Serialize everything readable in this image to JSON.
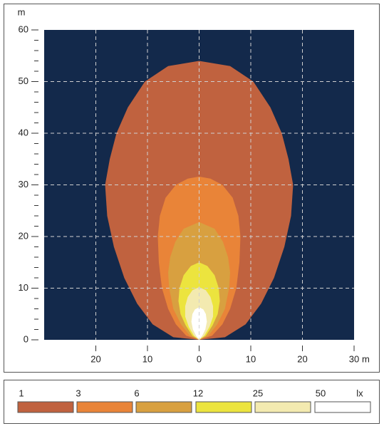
{
  "chart_data": {
    "type": "contour",
    "x_unit": "m",
    "y_unit": "m",
    "legend_unit": "lx",
    "background": "#13294b",
    "grid": true,
    "xlim": [
      -30,
      30
    ],
    "xticks": [
      {
        "value": -20,
        "label": "20"
      },
      {
        "value": -10,
        "label": "10"
      },
      0,
      10,
      20,
      30
    ],
    "ylim": [
      0,
      60
    ],
    "yticks": [
      0,
      10,
      20,
      30,
      40,
      50,
      60
    ],
    "y_minor_ticks": [
      2,
      4,
      6,
      8,
      12,
      14,
      16,
      18,
      22,
      24,
      26,
      28,
      32,
      34,
      36,
      38,
      42,
      44,
      46,
      48,
      52,
      54,
      56,
      58
    ],
    "series": [
      {
        "name": "1",
        "color": "#c0623f",
        "x": [
          0,
          5,
          9,
          12,
          14.5,
          16.5,
          17.8,
          18.2,
          17.3,
          16,
          13.8,
          10.5,
          6,
          0,
          -6,
          -10.5,
          -13.8,
          -16,
          -17.3,
          -18.2,
          -17.8,
          -16.5,
          -14.5,
          -12,
          -9,
          -5
        ],
        "y": [
          0,
          0.5,
          3,
          7,
          12,
          18,
          24,
          30,
          35,
          40,
          45,
          50,
          53,
          54,
          53,
          50,
          45,
          40,
          35,
          30,
          24,
          18,
          12,
          7,
          3,
          0.5
        ]
      },
      {
        "name": "3",
        "color": "#e98438",
        "x": [
          0,
          2.5,
          4.5,
          6,
          7.2,
          7.8,
          8,
          7.6,
          6.5,
          4.5,
          2.2,
          0,
          -2.2,
          -4.5,
          -6.5,
          -7.6,
          -8,
          -7.8,
          -7.2,
          -6,
          -4.5,
          -2.5
        ],
        "y": [
          0,
          0.8,
          3,
          6,
          10,
          15,
          20,
          24,
          27.5,
          30,
          31.2,
          31.6,
          31.2,
          30,
          27.5,
          24,
          20,
          15,
          10,
          6,
          3,
          0.8
        ]
      },
      {
        "name": "6",
        "color": "#d8a040",
        "x": [
          0,
          1.8,
          3.5,
          5,
          5.8,
          6,
          5.6,
          4.6,
          3,
          0,
          -3,
          -4.6,
          -5.6,
          -6,
          -5.8,
          -5,
          -3.5,
          -1.8
        ],
        "y": [
          0,
          0.8,
          3,
          6,
          10,
          13,
          16,
          19,
          21.5,
          22.8,
          21.5,
          19,
          16,
          13,
          10,
          6,
          3,
          0.8
        ]
      },
      {
        "name": "12",
        "color": "#ece43e",
        "x": [
          0,
          1.3,
          2.6,
          3.6,
          4,
          3.8,
          3,
          1.6,
          0,
          -1.6,
          -3,
          -3.8,
          -4,
          -3.6,
          -2.6,
          -1.3
        ],
        "y": [
          0,
          0.8,
          2.8,
          5,
          7.5,
          10,
          12.5,
          14.3,
          15,
          14.3,
          12.5,
          10,
          7.5,
          5,
          2.8,
          0.8
        ]
      },
      {
        "name": "25",
        "color": "#f3eab0",
        "x": [
          0,
          1,
          2,
          2.7,
          2.7,
          2.2,
          1.3,
          0,
          -1.3,
          -2.2,
          -2.7,
          -2.7,
          -2,
          -1
        ],
        "y": [
          0,
          0.8,
          2.5,
          4.5,
          6.5,
          8.3,
          9.6,
          10.2,
          9.6,
          8.3,
          6.5,
          4.5,
          2.5,
          0.8
        ]
      },
      {
        "name": "50",
        "color": "#ffffff",
        "x": [
          0,
          0.6,
          1.2,
          1.5,
          1.3,
          0.8,
          0,
          -0.8,
          -1.3,
          -1.5,
          -1.2,
          -0.6
        ],
        "y": [
          0,
          0.8,
          2,
          3.5,
          5,
          5.9,
          6.3,
          5.9,
          5,
          3.5,
          2,
          0.8
        ]
      }
    ]
  }
}
